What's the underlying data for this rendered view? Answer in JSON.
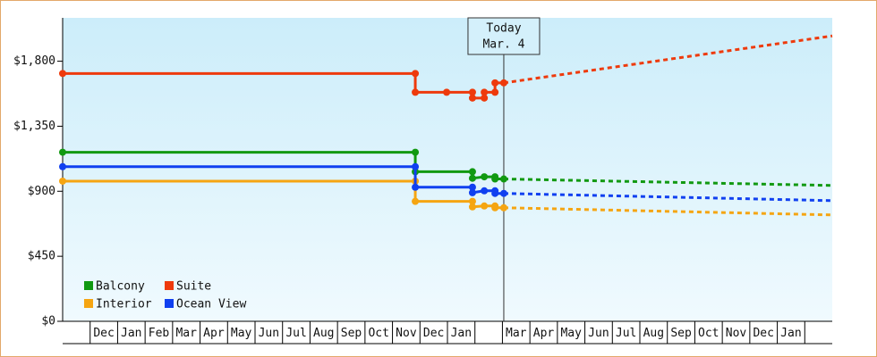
{
  "chart_data": {
    "type": "line",
    "annotation": {
      "title": "Today",
      "date": "Mar. 4",
      "x": 16.05
    },
    "categories": [
      null,
      "Dec",
      "Jan",
      "Feb",
      "Mar",
      "Apr",
      "May",
      "Jun",
      "Jul",
      "Aug",
      "Sep",
      "Oct",
      "Nov",
      "Dec",
      "Jan",
      null,
      "Mar",
      "Apr",
      "May",
      "Jun",
      "Jul",
      "Aug",
      "Sep",
      "Oct",
      "Nov",
      "Dec",
      "Jan",
      null
    ],
    "xlim": [
      0,
      28
    ],
    "ylim": [
      0,
      2100
    ],
    "yticks": [
      {
        "value": 0,
        "label": "$0"
      },
      {
        "value": 450,
        "label": "$450"
      },
      {
        "value": 900,
        "label": "$900"
      },
      {
        "value": 1350,
        "label": "$1,350"
      },
      {
        "value": 1800,
        "label": "$1,800"
      }
    ],
    "legend": "lower left",
    "series": [
      {
        "name": "Balcony",
        "color": "#119911",
        "x": [
          0,
          12.83,
          12.83,
          14.91,
          14.91,
          15.34,
          15.73,
          15.73,
          16.05
        ],
        "values": [
          1170,
          1170,
          1035,
          1035,
          990,
          1000,
          1000,
          985,
          985
        ],
        "forecast_x": [
          16.05,
          28
        ],
        "forecast_values": [
          985,
          940
        ]
      },
      {
        "name": "Suite",
        "color": "#ee3a0c",
        "x": [
          0,
          12.83,
          12.83,
          13.97,
          14.91,
          14.91,
          15.34,
          15.34,
          15.73,
          15.73,
          16.05
        ],
        "values": [
          1715,
          1715,
          1585,
          1585,
          1585,
          1545,
          1545,
          1585,
          1585,
          1650,
          1650
        ],
        "forecast_x": [
          16.05,
          28
        ],
        "forecast_values": [
          1650,
          1975
        ]
      },
      {
        "name": "Interior",
        "color": "#f5a512",
        "x": [
          0,
          12.83,
          12.83,
          14.91,
          14.91,
          15.34,
          15.73,
          15.73,
          16.05
        ],
        "values": [
          970,
          970,
          830,
          830,
          792,
          798,
          798,
          786,
          786
        ],
        "forecast_x": [
          16.05,
          28
        ],
        "forecast_values": [
          786,
          736
        ]
      },
      {
        "name": "Ocean View",
        "color": "#1040f0",
        "x": [
          0,
          12.83,
          12.83,
          14.91,
          14.91,
          15.34,
          15.73,
          15.73,
          16.05
        ],
        "values": [
          1070,
          1070,
          928,
          928,
          890,
          903,
          903,
          885,
          885
        ],
        "forecast_x": [
          16.05,
          28
        ],
        "forecast_values": [
          885,
          835
        ]
      }
    ]
  }
}
